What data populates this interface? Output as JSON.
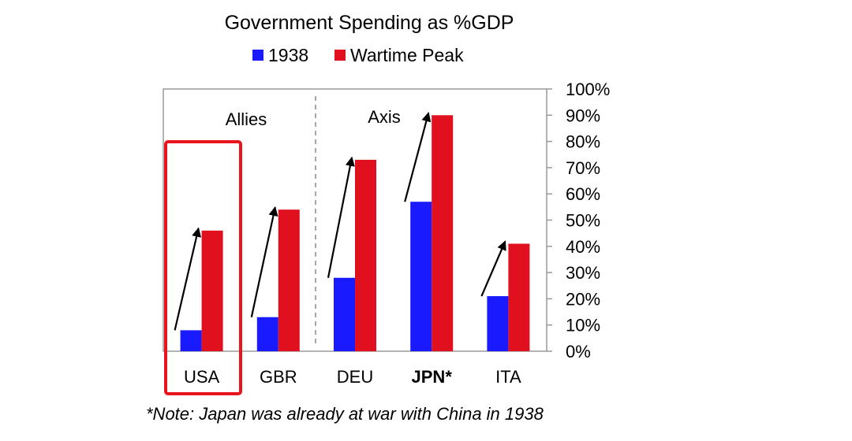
{
  "chart_data": {
    "type": "bar",
    "title": "Government Spending as %GDP",
    "categories": [
      "USA",
      "GBR",
      "DEU",
      "JPN*",
      "ITA"
    ],
    "bold_categories": [
      "JPN*"
    ],
    "series": [
      {
        "name": "1938",
        "color": "#1a1aff",
        "values": [
          8,
          13,
          28,
          57,
          21
        ]
      },
      {
        "name": "Wartime Peak",
        "color": "#e0101e",
        "values": [
          46,
          54,
          73,
          90,
          41
        ]
      }
    ],
    "ylim": [
      0,
      100
    ],
    "yticks": [
      0,
      10,
      20,
      30,
      40,
      50,
      60,
      70,
      80,
      90,
      100
    ],
    "ytick_labels": [
      "0%",
      "10%",
      "20%",
      "30%",
      "40%",
      "50%",
      "60%",
      "70%",
      "80%",
      "90%",
      "100%"
    ],
    "y_axis_side": "right",
    "legend_position": "top-center",
    "grid": false,
    "groups": [
      {
        "label": "Allies",
        "categories": [
          "USA",
          "GBR"
        ]
      },
      {
        "label": "Axis",
        "categories": [
          "DEU",
          "JPN*",
          "ITA"
        ]
      }
    ],
    "highlight": {
      "category": "USA",
      "color": "#e8141e"
    },
    "arrow_color": "#000000",
    "note": "*Note: Japan was already at war with China in 1938"
  }
}
